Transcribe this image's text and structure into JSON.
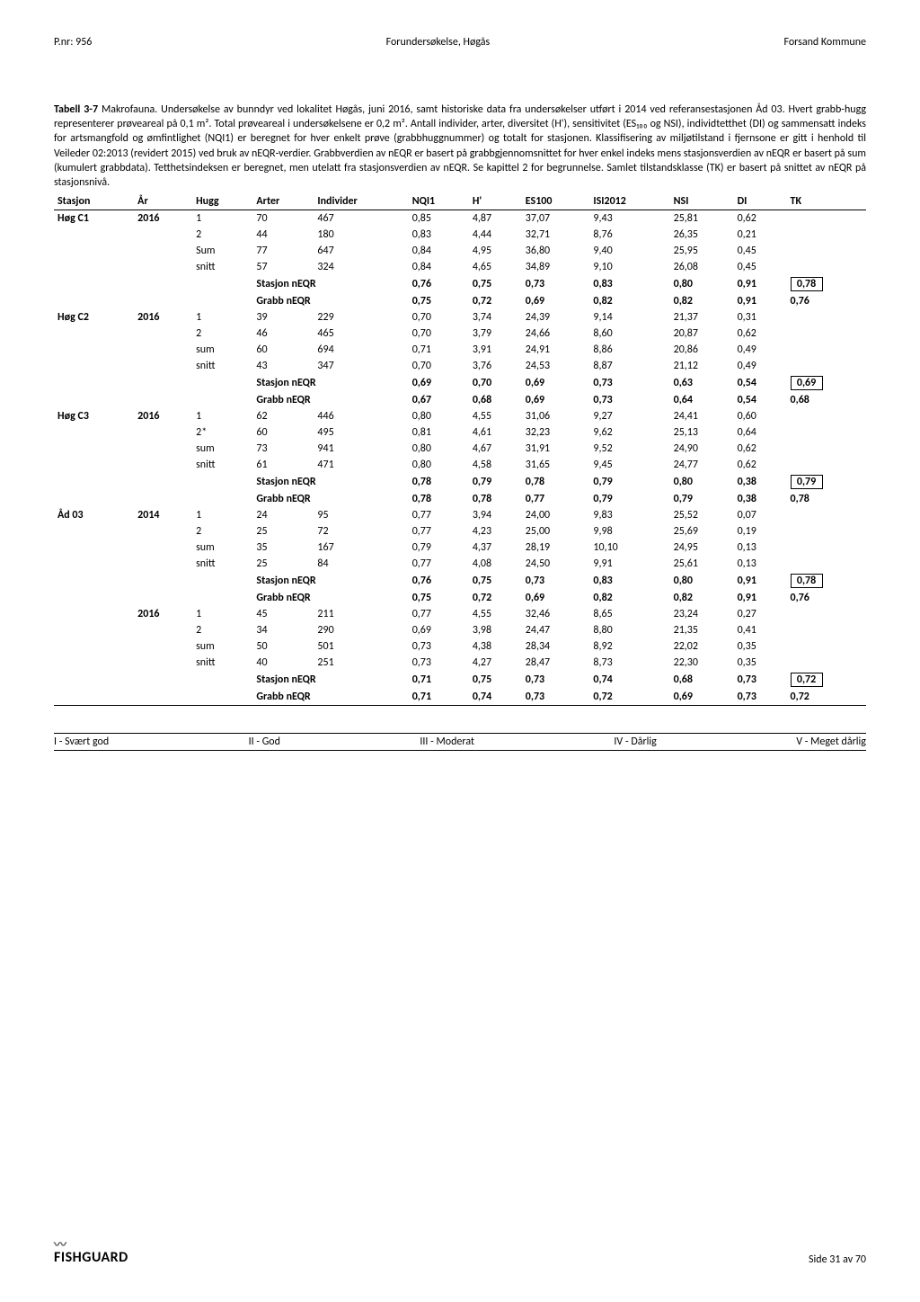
{
  "header": {
    "left": "P.nr: 956",
    "center": "Forundersøkelse, Høgås",
    "right": "Forsand Kommune"
  },
  "description": {
    "title": "Tabell 3-7",
    "text": " Makrofauna. Undersøkelse av bunndyr ved lokalitet Høgås, juni 2016, samt historiske data fra undersøkelser utført i 2014 ved referansestasjonen Åd 03. Hvert grabb-hugg representerer prøveareal på 0,1 m². Total prøveareal i undersøkelsene er 0,2 m². Antall individer, arter, diversitet (H'), sensitivitet (ES₁₀₀ og NSI), individtetthet (DI) og sammensatt indeks for artsmangfold og ømfintlighet (NQI1) er beregnet for hver enkelt prøve (grabbhuggnummer) og totalt for stasjonen. Klassifisering av miljøtilstand i fjernsone er gitt i henhold til Veileder 02:2013 (revidert 2015) ved bruk av nEQR-verdier. Grabbverdien av nEQR er basert på grabbgjennomsnittet for hver enkel indeks mens stasjonsverdien av nEQR er basert på sum (kumulert grabbdata). Tetthetsindeksen er beregnet, men utelatt fra stasjonsverdien av nEQR. Se kapittel 2 for begrunnelse. Samlet tilstandsklasse (TK) er basert på snittet av nEQR på stasjonsnivå."
  },
  "columns": [
    "Stasjon",
    "År",
    "Hugg",
    "Arter",
    "Individer",
    "NQI1",
    "H'",
    "ES100",
    "ISI2012",
    "NSI",
    "DI",
    "TK"
  ],
  "stations": [
    {
      "stasjon": "Høg C1",
      "ar": "2016",
      "rows": [
        {
          "hugg": "1",
          "arter": "70",
          "ind": "467",
          "nqi": "0,85",
          "h": "4,87",
          "es": "37,07",
          "isi": "9,43",
          "nsi": "25,81",
          "di": "0,62"
        },
        {
          "hugg": "2",
          "arter": "44",
          "ind": "180",
          "nqi": "0,83",
          "h": "4,44",
          "es": "32,71",
          "isi": "8,76",
          "nsi": "26,35",
          "di": "0,21"
        },
        {
          "hugg": "Sum",
          "arter": "77",
          "ind": "647",
          "nqi": "0,84",
          "h": "4,95",
          "es": "36,80",
          "isi": "9,40",
          "nsi": "25,95",
          "di": "0,45"
        },
        {
          "hugg": "snitt",
          "arter": "57",
          "ind": "324",
          "nqi": "0,84",
          "h": "4,65",
          "es": "34,89",
          "isi": "9,10",
          "nsi": "26,08",
          "di": "0,45"
        }
      ],
      "stasjon_neqr": {
        "nqi": "0,76",
        "h": "0,75",
        "es": "0,73",
        "isi": "0,83",
        "nsi": "0,80",
        "di": "0,91",
        "tk": "0,78"
      },
      "grabb_neqr": {
        "nqi": "0,75",
        "h": "0,72",
        "es": "0,69",
        "isi": "0,82",
        "nsi": "0,82",
        "di": "0,91",
        "tk": "0,76"
      }
    },
    {
      "stasjon": "Høg C2",
      "ar": "2016",
      "rows": [
        {
          "hugg": "1",
          "arter": "39",
          "ind": "229",
          "nqi": "0,70",
          "h": "3,74",
          "es": "24,39",
          "isi": "9,14",
          "nsi": "21,37",
          "di": "0,31"
        },
        {
          "hugg": "2",
          "arter": "46",
          "ind": "465",
          "nqi": "0,70",
          "h": "3,79",
          "es": "24,66",
          "isi": "8,60",
          "nsi": "20,87",
          "di": "0,62"
        },
        {
          "hugg": "sum",
          "arter": "60",
          "ind": "694",
          "nqi": "0,71",
          "h": "3,91",
          "es": "24,91",
          "isi": "8,86",
          "nsi": "20,86",
          "di": "0,49"
        },
        {
          "hugg": "snitt",
          "arter": "43",
          "ind": "347",
          "nqi": "0,70",
          "h": "3,76",
          "es": "24,53",
          "isi": "8,87",
          "nsi": "21,12",
          "di": "0,49"
        }
      ],
      "stasjon_neqr": {
        "nqi": "0,69",
        "h": "0,70",
        "es": "0,69",
        "isi": "0,73",
        "nsi": "0,63",
        "di": "0,54",
        "tk": "0,69"
      },
      "grabb_neqr": {
        "nqi": "0,67",
        "h": "0,68",
        "es": "0,69",
        "isi": "0,73",
        "nsi": "0,64",
        "di": "0,54",
        "tk": "0,68"
      }
    },
    {
      "stasjon": "Høg C3",
      "ar": "2016",
      "rows": [
        {
          "hugg": "1",
          "arter": "62",
          "ind": "446",
          "nqi": "0,80",
          "h": "4,55",
          "es": "31,06",
          "isi": "9,27",
          "nsi": "24,41",
          "di": "0,60"
        },
        {
          "hugg": "2*",
          "arter": "60",
          "ind": "495",
          "nqi": "0,81",
          "h": "4,61",
          "es": "32,23",
          "isi": "9,62",
          "nsi": "25,13",
          "di": "0,64"
        },
        {
          "hugg": "sum",
          "arter": "73",
          "ind": "941",
          "nqi": "0,80",
          "h": "4,67",
          "es": "31,91",
          "isi": "9,52",
          "nsi": "24,90",
          "di": "0,62"
        },
        {
          "hugg": "snitt",
          "arter": "61",
          "ind": "471",
          "nqi": "0,80",
          "h": "4,58",
          "es": "31,65",
          "isi": "9,45",
          "nsi": "24,77",
          "di": "0,62"
        }
      ],
      "stasjon_neqr": {
        "nqi": "0,78",
        "h": "0,79",
        "es": "0,78",
        "isi": "0,79",
        "nsi": "0,80",
        "di": "0,38",
        "tk": "0,79"
      },
      "grabb_neqr": {
        "nqi": "0,78",
        "h": "0,78",
        "es": "0,77",
        "isi": "0,79",
        "nsi": "0,79",
        "di": "0,38",
        "tk": "0,78"
      }
    },
    {
      "stasjon": "Åd 03",
      "ar": "2014",
      "rows": [
        {
          "hugg": "1",
          "arter": "24",
          "ind": "95",
          "nqi": "0,77",
          "h": "3,94",
          "es": "24,00",
          "isi": "9,83",
          "nsi": "25,52",
          "di": "0,07"
        },
        {
          "hugg": "2",
          "arter": "25",
          "ind": "72",
          "nqi": "0,77",
          "h": "4,23",
          "es": "25,00",
          "isi": "9,98",
          "nsi": "25,69",
          "di": "0,19"
        },
        {
          "hugg": "sum",
          "arter": "35",
          "ind": "167",
          "nqi": "0,79",
          "h": "4,37",
          "es": "28,19",
          "isi": "10,10",
          "nsi": "24,95",
          "di": "0,13"
        },
        {
          "hugg": "snitt",
          "arter": "25",
          "ind": "84",
          "nqi": "0,77",
          "h": "4,08",
          "es": "24,50",
          "isi": "9,91",
          "nsi": "25,61",
          "di": "0,13"
        }
      ],
      "stasjon_neqr": {
        "nqi": "0,76",
        "h": "0,75",
        "es": "0,73",
        "isi": "0,83",
        "nsi": "0,80",
        "di": "0,91",
        "tk": "0,78"
      },
      "grabb_neqr": {
        "nqi": "0,75",
        "h": "0,72",
        "es": "0,69",
        "isi": "0,82",
        "nsi": "0,82",
        "di": "0,91",
        "tk": "0,76"
      }
    },
    {
      "stasjon": "",
      "ar": "2016",
      "rows": [
        {
          "hugg": "1",
          "arter": "45",
          "ind": "211",
          "nqi": "0,77",
          "h": "4,55",
          "es": "32,46",
          "isi": "8,65",
          "nsi": "23,24",
          "di": "0,27"
        },
        {
          "hugg": "2",
          "arter": "34",
          "ind": "290",
          "nqi": "0,69",
          "h": "3,98",
          "es": "24,47",
          "isi": "8,80",
          "nsi": "21,35",
          "di": "0,41"
        },
        {
          "hugg": "sum",
          "arter": "50",
          "ind": "501",
          "nqi": "0,73",
          "h": "4,38",
          "es": "28,34",
          "isi": "8,92",
          "nsi": "22,02",
          "di": "0,35"
        },
        {
          "hugg": "snitt",
          "arter": "40",
          "ind": "251",
          "nqi": "0,73",
          "h": "4,27",
          "es": "28,47",
          "isi": "8,73",
          "nsi": "22,30",
          "di": "0,35"
        }
      ],
      "stasjon_neqr": {
        "nqi": "0,71",
        "h": "0,75",
        "es": "0,73",
        "isi": "0,74",
        "nsi": "0,68",
        "di": "0,73",
        "tk": "0,72"
      },
      "grabb_neqr": {
        "nqi": "0,71",
        "h": "0,74",
        "es": "0,73",
        "isi": "0,72",
        "nsi": "0,69",
        "di": "0,73",
        "tk": "0,72"
      }
    }
  ],
  "labels": {
    "stasjon_neqr": "Stasjon nEQR",
    "grabb_neqr": "Grabb nEQR"
  },
  "legend": [
    "I - Svært god",
    "II - God",
    "III - Moderat",
    "IV - Dårlig",
    "V - Meget dårlig"
  ],
  "footer": {
    "logo": "FISHGUARD",
    "page": "Side 31 av 70"
  }
}
